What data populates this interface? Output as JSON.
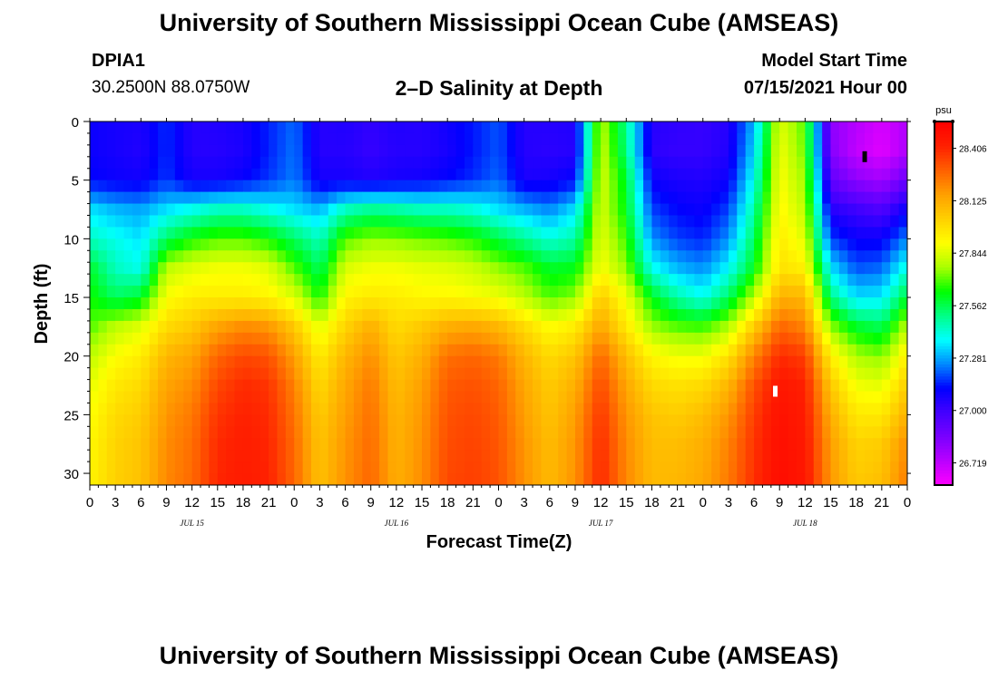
{
  "header": {
    "title": "University of Southern Mississippi Ocean Cube (AMSEAS)",
    "station_id": "DPIA1",
    "station_coords": "30.2500N  88.0750W",
    "subtitle": "2–D Salinity at Depth",
    "model_start_label": "Model Start Time",
    "model_start_value": "07/15/2021 Hour 00"
  },
  "footer": {
    "title": "University of Southern Mississippi Ocean Cube (AMSEAS)"
  },
  "chart_data": {
    "type": "heatmap",
    "title": "2–D Salinity at Depth",
    "xlabel": "Forecast Time(Z)",
    "ylabel": "Depth (ft)",
    "x_unit": "forecast hour",
    "xlim": [
      0,
      96
    ],
    "ylim": [
      31,
      0
    ],
    "x_ticks": [
      0,
      3,
      6,
      9,
      12,
      15,
      18,
      21,
      24,
      27,
      30,
      33,
      36,
      39,
      42,
      45,
      48,
      51,
      54,
      57,
      60,
      63,
      66,
      69,
      72,
      75,
      78,
      81,
      84,
      87,
      90,
      93,
      96
    ],
    "x_tick_labels": [
      "0",
      "3",
      "6",
      "9",
      "12",
      "15",
      "18",
      "21",
      "0",
      "3",
      "6",
      "9",
      "12",
      "15",
      "18",
      "21",
      "0",
      "3",
      "6",
      "9",
      "12",
      "15",
      "18",
      "21",
      "0",
      "3",
      "6",
      "9",
      "12",
      "15",
      "18",
      "21",
      "0"
    ],
    "date_labels": [
      {
        "hour": 12,
        "label": "JUL 15"
      },
      {
        "hour": 36,
        "label": "JUL 16"
      },
      {
        "hour": 60,
        "label": "JUL 17"
      },
      {
        "hour": 84,
        "label": "JUL 18"
      }
    ],
    "y_ticks": [
      0,
      5,
      10,
      15,
      20,
      25,
      30
    ],
    "y_tick_labels": [
      "0",
      "5",
      "10",
      "15",
      "20",
      "25",
      "30"
    ],
    "colorbar": {
      "unit": "psu",
      "range": [
        26.6,
        28.55
      ],
      "ticks": [
        26.719,
        27.0,
        27.281,
        27.562,
        27.844,
        28.125,
        28.406
      ],
      "tick_labels": [
        "26.719",
        "27.000",
        "27.281",
        "27.562",
        "27.844",
        "28.125",
        "28.406"
      ],
      "colors": [
        "#ff00ff",
        "#bb00ff",
        "#7a00ff",
        "#4400ff",
        "#0000ff",
        "#0088ff",
        "#00ffff",
        "#00ff88",
        "#00ff00",
        "#aaff00",
        "#ffff00",
        "#ffd000",
        "#ffa000",
        "#ff6000",
        "#ff2000",
        "#ff0000"
      ]
    },
    "min_marker": {
      "hour": 91,
      "depth_ft": 3,
      "color": "#000000"
    },
    "max_marker": {
      "hour": 80.5,
      "depth_ft": 23,
      "color": "#ffffff"
    },
    "time_hours": [
      0,
      3,
      6,
      9,
      12,
      15,
      18,
      21,
      24,
      27,
      30,
      33,
      36,
      39,
      42,
      45,
      48,
      51,
      54,
      57,
      60,
      63,
      66,
      69,
      72,
      75,
      78,
      81,
      84,
      87,
      90,
      93,
      96
    ],
    "depths_ft": [
      0,
      2.5,
      5,
      7.5,
      10,
      12.5,
      15,
      17.5,
      20,
      22.5,
      25,
      27.5,
      31
    ],
    "salinity_psu": [
      [
        27.1,
        27.08,
        27.07,
        27.16,
        27.05,
        27.06,
        27.08,
        27.15,
        27.22,
        27.05,
        27.06,
        27.03,
        27.06,
        27.05,
        27.09,
        27.14,
        27.2,
        27.05,
        27.05,
        27.06,
        27.8,
        27.5,
        27.05,
        27.03,
        27.02,
        27.05,
        27.3,
        27.85,
        27.7,
        26.82,
        26.74,
        26.68,
        26.75
      ],
      [
        27.1,
        27.08,
        27.06,
        27.16,
        27.05,
        27.05,
        27.07,
        27.15,
        27.23,
        27.05,
        27.05,
        27.02,
        27.05,
        27.05,
        27.08,
        27.14,
        27.2,
        27.05,
        27.04,
        27.05,
        27.82,
        27.52,
        27.04,
        27.02,
        27.02,
        27.06,
        27.34,
        27.88,
        27.72,
        26.84,
        26.72,
        26.66,
        26.76
      ],
      [
        27.12,
        27.1,
        27.09,
        27.17,
        27.08,
        27.08,
        27.11,
        27.17,
        27.24,
        27.08,
        27.08,
        27.06,
        27.08,
        27.09,
        27.12,
        27.16,
        27.22,
        27.07,
        27.08,
        27.12,
        27.84,
        27.6,
        27.1,
        27.07,
        27.06,
        27.1,
        27.4,
        27.9,
        27.76,
        26.92,
        26.82,
        26.78,
        26.9
      ],
      [
        27.35,
        27.3,
        27.28,
        27.35,
        27.4,
        27.45,
        27.45,
        27.4,
        27.35,
        27.3,
        27.45,
        27.5,
        27.48,
        27.45,
        27.45,
        27.42,
        27.35,
        27.3,
        27.25,
        27.35,
        27.84,
        27.62,
        27.18,
        27.12,
        27.1,
        27.18,
        27.48,
        27.92,
        27.8,
        27.05,
        27.0,
        26.96,
        27.1
      ],
      [
        27.45,
        27.4,
        27.35,
        27.55,
        27.65,
        27.7,
        27.7,
        27.65,
        27.55,
        27.45,
        27.7,
        27.75,
        27.74,
        27.72,
        27.7,
        27.66,
        27.58,
        27.5,
        27.42,
        27.48,
        27.86,
        27.68,
        27.26,
        27.18,
        27.15,
        27.26,
        27.55,
        27.95,
        27.85,
        27.18,
        27.1,
        27.1,
        27.25
      ],
      [
        27.6,
        27.45,
        27.4,
        27.8,
        27.85,
        27.88,
        27.88,
        27.85,
        27.7,
        27.55,
        27.84,
        27.88,
        27.88,
        27.86,
        27.85,
        27.82,
        27.75,
        27.7,
        27.6,
        27.62,
        27.9,
        27.75,
        27.4,
        27.3,
        27.26,
        27.38,
        27.62,
        27.98,
        27.94,
        27.35,
        27.2,
        27.22,
        27.42
      ],
      [
        27.65,
        27.55,
        27.6,
        27.9,
        27.95,
        27.95,
        27.95,
        27.93,
        27.85,
        27.65,
        27.93,
        27.96,
        27.95,
        27.92,
        27.92,
        27.9,
        27.88,
        27.8,
        27.7,
        27.75,
        28.05,
        27.88,
        27.62,
        27.48,
        27.4,
        27.55,
        27.8,
        28.12,
        28.1,
        27.52,
        27.35,
        27.36,
        27.6
      ],
      [
        27.7,
        27.8,
        27.85,
        28.0,
        28.05,
        28.15,
        28.2,
        28.18,
        28.05,
        27.85,
        28.02,
        28.12,
        28.0,
        28.05,
        28.12,
        28.14,
        28.1,
        28.0,
        27.9,
        27.95,
        28.15,
        27.96,
        27.76,
        27.7,
        27.68,
        27.78,
        28.04,
        28.28,
        28.22,
        27.75,
        27.6,
        27.56,
        27.8
      ],
      [
        27.8,
        27.9,
        27.95,
        28.1,
        28.15,
        28.28,
        28.34,
        28.32,
        28.16,
        27.95,
        28.1,
        28.2,
        28.05,
        28.12,
        28.26,
        28.28,
        28.24,
        28.1,
        28.0,
        28.06,
        28.28,
        28.08,
        27.92,
        27.88,
        27.88,
        27.98,
        28.22,
        28.4,
        28.36,
        27.94,
        27.78,
        27.74,
        27.95
      ],
      [
        27.86,
        27.96,
        28.0,
        28.15,
        28.2,
        28.34,
        28.4,
        28.38,
        28.22,
        28.0,
        28.14,
        28.24,
        28.08,
        28.16,
        28.3,
        28.32,
        28.28,
        28.14,
        28.04,
        28.12,
        28.34,
        28.14,
        28.0,
        27.98,
        28.0,
        28.1,
        28.32,
        28.46,
        28.42,
        28.05,
        27.88,
        27.86,
        28.04
      ],
      [
        27.9,
        28.0,
        28.04,
        28.18,
        28.24,
        28.38,
        28.42,
        28.4,
        28.25,
        28.04,
        28.16,
        28.26,
        28.1,
        28.18,
        28.32,
        28.34,
        28.3,
        28.16,
        28.06,
        28.16,
        28.38,
        28.18,
        28.06,
        28.04,
        28.08,
        28.18,
        28.36,
        28.48,
        28.44,
        28.12,
        27.96,
        27.96,
        28.12
      ],
      [
        27.92,
        28.02,
        28.06,
        28.2,
        28.26,
        28.4,
        28.43,
        28.41,
        28.27,
        28.06,
        28.18,
        28.27,
        28.11,
        28.19,
        28.33,
        28.35,
        28.31,
        28.18,
        28.08,
        28.18,
        28.4,
        28.2,
        28.08,
        28.08,
        28.12,
        28.22,
        28.38,
        28.49,
        28.45,
        28.16,
        28.02,
        28.04,
        28.2
      ],
      [
        27.93,
        28.03,
        28.07,
        28.21,
        28.27,
        28.41,
        28.44,
        28.42,
        28.28,
        28.07,
        28.19,
        28.28,
        28.12,
        28.2,
        28.34,
        28.36,
        28.32,
        28.19,
        28.09,
        28.19,
        28.41,
        28.21,
        28.09,
        28.1,
        28.14,
        28.24,
        28.39,
        28.5,
        28.46,
        28.18,
        28.05,
        28.08,
        28.24
      ]
    ]
  }
}
